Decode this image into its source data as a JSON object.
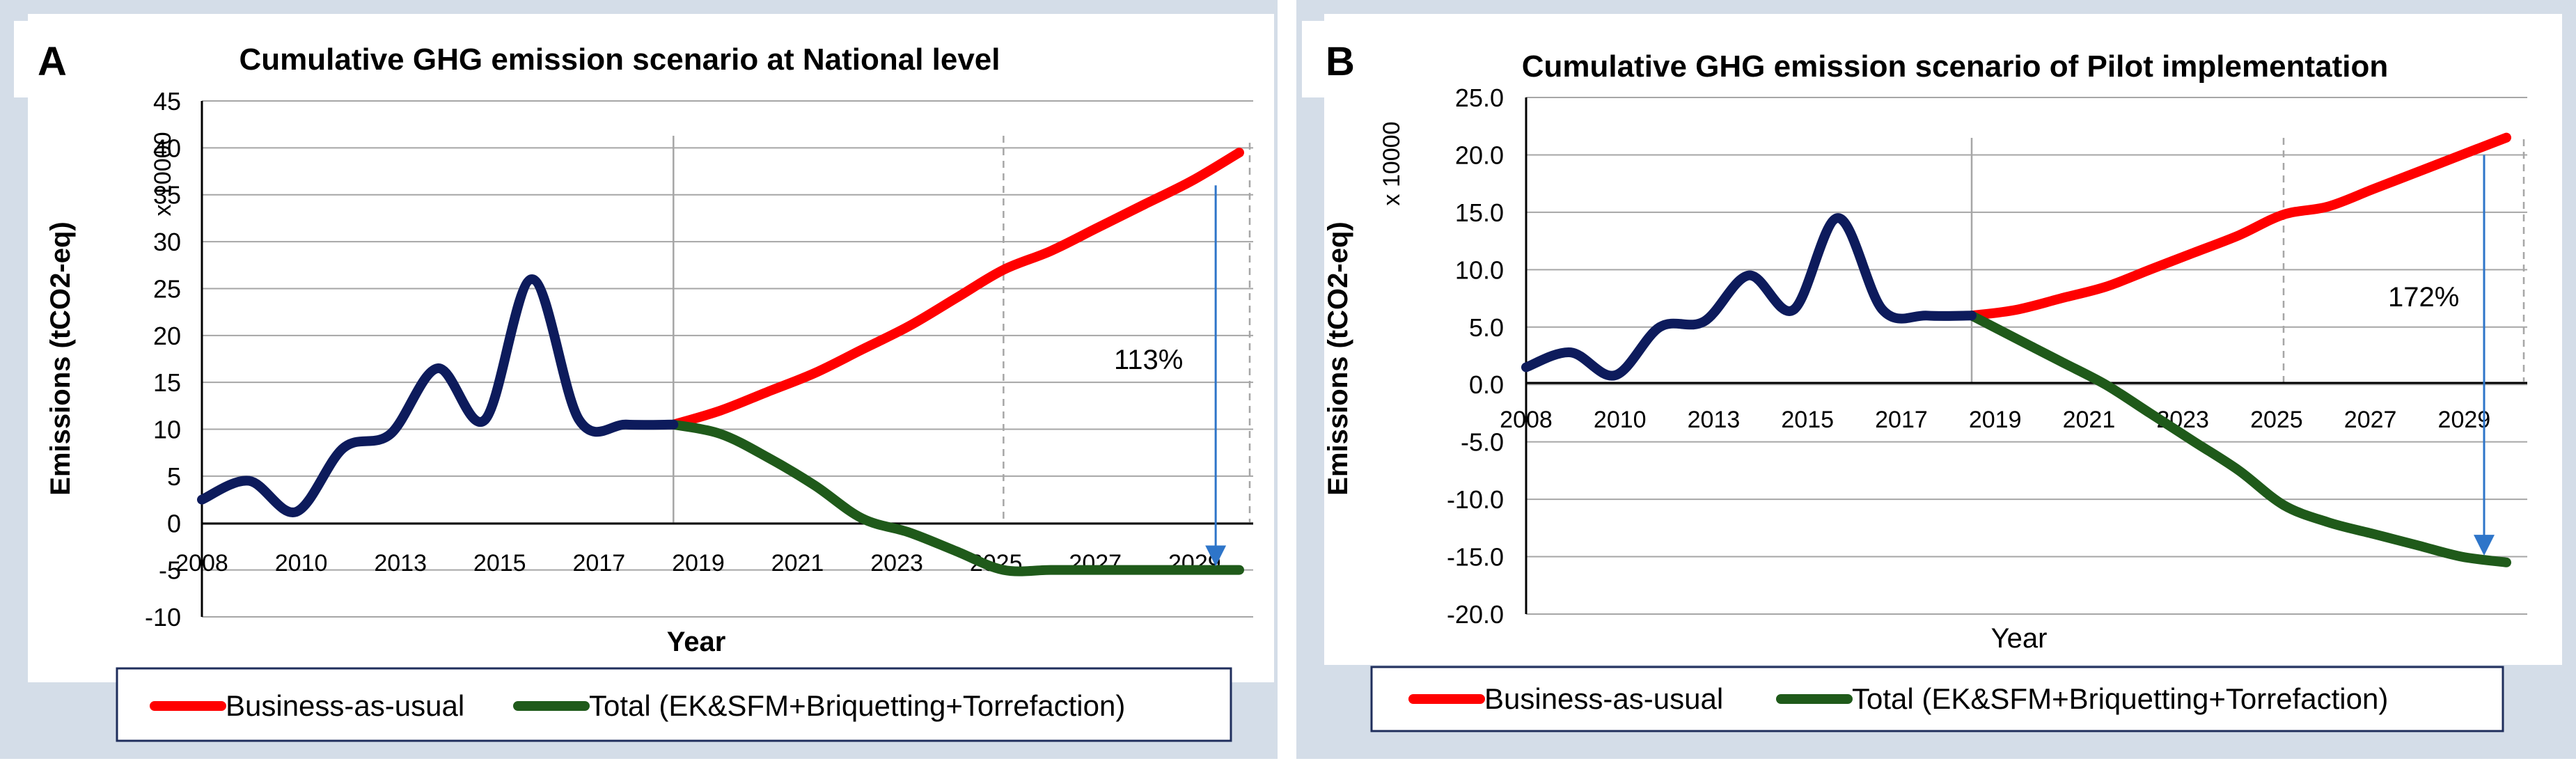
{
  "colors": {
    "bau": "#ff0000",
    "hist": "#0d1b5c",
    "total": "#1f5a1a",
    "arrow": "#2e75c9"
  },
  "panels": [
    {
      "letter": "A",
      "title": "Cumulative GHG emission scenario at National level"
    },
    {
      "letter": "B",
      "title": "Cumulative GHG emission scenario of Pilot implementation"
    }
  ],
  "chart_data": [
    {
      "type": "line",
      "title": "Cumulative GHG emission scenario at National level",
      "xlabel": "Year",
      "ylabel": "Emissions (tCO2-eq)",
      "yscale_label": "x 10000",
      "ylim": [
        -10,
        45
      ],
      "xlim": [
        2008,
        2030
      ],
      "ytick_labels": [
        "-10",
        "-5",
        "0",
        "5",
        "10",
        "15",
        "20",
        "25",
        "30",
        "35",
        "40",
        "45"
      ],
      "xtick_labels": [
        "2008",
        "2010",
        "2013",
        "2015",
        "2017",
        "2019",
        "2021",
        "2023",
        "2025",
        "2027",
        "2029"
      ],
      "legend": [
        "Business-as-usual",
        "Total (EK&SFM+Briquetting+Torrefaction)"
      ],
      "annotation": {
        "text": "113%",
        "year_from": 2029.5,
        "from": 36,
        "to": -3.5
      },
      "reference_lines": [
        {
          "x": 2018,
          "style": "solid"
        },
        {
          "x": 2025,
          "style": "dashed"
        }
      ],
      "series": [
        {
          "name": "Historical",
          "x": [
            2008,
            2009,
            2010,
            2011,
            2012,
            2013,
            2014,
            2015,
            2016,
            2017,
            2018
          ],
          "values": [
            2.5,
            4.5,
            1.2,
            8,
            9.5,
            16.5,
            11,
            26,
            11,
            10.5,
            10.5
          ]
        },
        {
          "name": "Business-as-usual",
          "x": [
            2018,
            2019,
            2020,
            2021,
            2022,
            2023,
            2024,
            2025,
            2026,
            2027,
            2028,
            2029,
            2030
          ],
          "values": [
            10.5,
            12,
            14,
            16,
            18.5,
            21,
            24,
            27,
            29,
            31.5,
            34,
            36.5,
            39.5
          ]
        },
        {
          "name": "Total (EK&SFM+Briquetting+Torrefaction)",
          "x": [
            2018,
            2019,
            2020,
            2021,
            2022,
            2023,
            2024,
            2025,
            2026,
            2027,
            2028,
            2029,
            2030
          ],
          "values": [
            10.5,
            9.5,
            7,
            4,
            0.5,
            -1,
            -3,
            -5,
            -5,
            -5,
            -5,
            -5,
            -5
          ]
        }
      ]
    },
    {
      "type": "line",
      "title": "Cumulative GHG emission scenario of Pilot implementation",
      "xlabel": "Year",
      "ylabel": "Emissions (tCO2-eq)",
      "yscale_label": "x 10000",
      "ylim": [
        -20,
        25
      ],
      "xlim": [
        2008,
        2030
      ],
      "ytick_labels": [
        "-20.0",
        "-15.0",
        "-10.0",
        "-5.0",
        "0.0",
        "5.0",
        "10.0",
        "15.0",
        "20.0",
        "25.0"
      ],
      "xtick_labels": [
        "2008",
        "2010",
        "2013",
        "2015",
        "2017",
        "2019",
        "2021",
        "2023",
        "2025",
        "2027",
        "2029"
      ],
      "legend": [
        "Business-as-usual",
        "Total (EK&SFM+Briquetting+Torrefaction)"
      ],
      "annotation": {
        "text": "172%",
        "year_from": 2029.5,
        "from": 20,
        "to": -14
      },
      "reference_lines": [
        {
          "x": 2018,
          "style": "solid"
        },
        {
          "x": 2025,
          "style": "dashed"
        }
      ],
      "series": [
        {
          "name": "Historical",
          "x": [
            2008,
            2009,
            2010,
            2011,
            2012,
            2013,
            2014,
            2015,
            2016,
            2017,
            2018
          ],
          "values": [
            1.5,
            2.8,
            0.8,
            5,
            5.5,
            9.5,
            6.5,
            14.5,
            6.5,
            6,
            6
          ]
        },
        {
          "name": "Business-as-usual",
          "x": [
            2018,
            2019,
            2020,
            2021,
            2022,
            2023,
            2024,
            2025,
            2026,
            2027,
            2028,
            2029,
            2030
          ],
          "values": [
            6,
            6.5,
            7.5,
            8.5,
            10,
            11.5,
            13,
            14.8,
            15.5,
            17,
            18.5,
            20,
            21.5
          ]
        },
        {
          "name": "Total (EK&SFM+Briquetting+Torrefaction)",
          "x": [
            2018,
            2019,
            2020,
            2021,
            2022,
            2023,
            2024,
            2025,
            2026,
            2027,
            2028,
            2029,
            2030
          ],
          "values": [
            6,
            4,
            2,
            0,
            -2.5,
            -5,
            -7.5,
            -10.5,
            -12,
            -13,
            -14,
            -15,
            -15.5
          ]
        }
      ]
    }
  ]
}
